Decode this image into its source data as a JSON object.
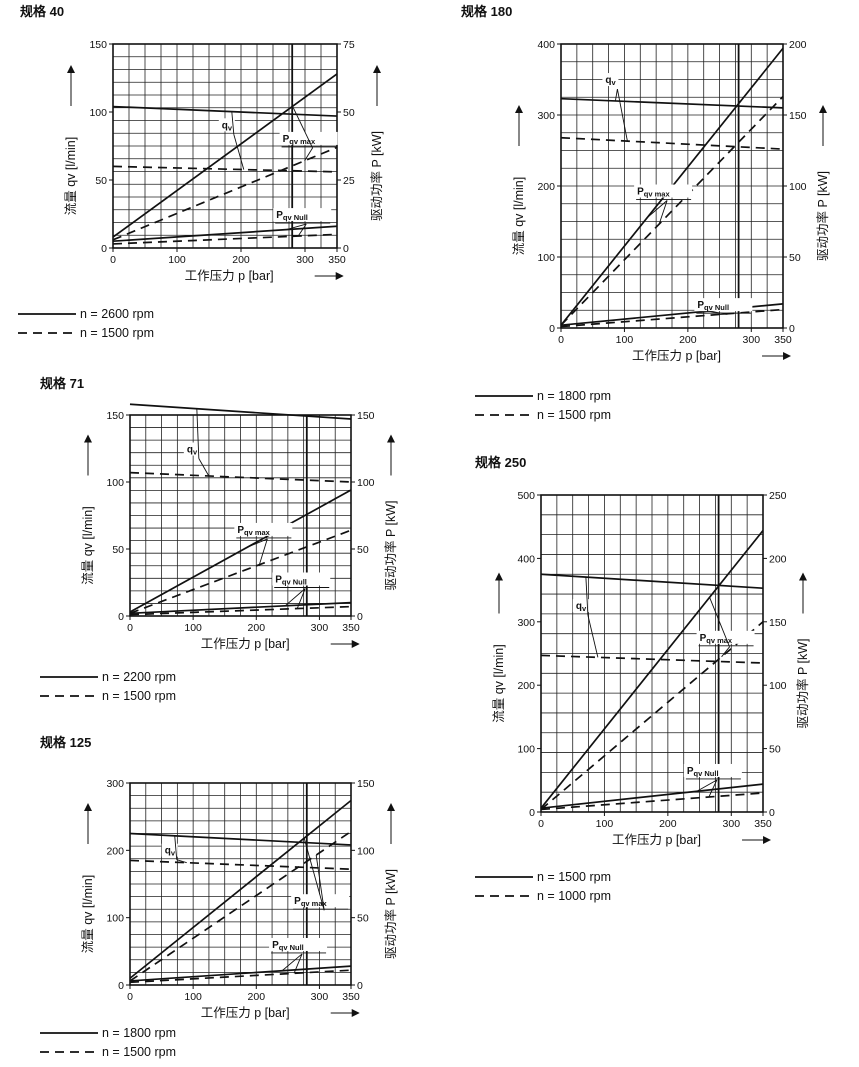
{
  "chart_data": [
    {
      "id": "c40",
      "type": "line",
      "title": "规格 40",
      "xlabel": "工作压力 p [bar]",
      "ylabel_left": "流量 qv [l/min]",
      "ylabel_right": "驱动功率 P [kW]",
      "xlim": [
        0,
        350
      ],
      "ylim_left": [
        0,
        150
      ],
      "ylim_right": [
        0,
        75
      ],
      "x_ticks": [
        0,
        100,
        200,
        300,
        350
      ],
      "y_ticks_left": [
        0,
        50,
        100,
        150
      ],
      "y_ticks_right": [
        0,
        25,
        50,
        75
      ],
      "x_marker": 280,
      "series": [
        {
          "name": "qv",
          "axis": "left",
          "speed": "n = 2600 rpm",
          "style": "solid",
          "x": [
            0,
            350
          ],
          "y": [
            104,
            97
          ]
        },
        {
          "name": "qv",
          "axis": "left",
          "speed": "n = 1500 rpm",
          "style": "dashed",
          "x": [
            0,
            350
          ],
          "y": [
            60,
            56
          ]
        },
        {
          "name": "Pqv max",
          "axis": "right",
          "speed": "n = 2600 rpm",
          "style": "solid",
          "x": [
            0,
            350
          ],
          "y": [
            4,
            64
          ]
        },
        {
          "name": "Pqv max",
          "axis": "right",
          "speed": "n = 1500 rpm",
          "style": "dashed",
          "x": [
            0,
            350
          ],
          "y": [
            3,
            37
          ]
        },
        {
          "name": "Pqv Null",
          "axis": "right",
          "speed": "n = 2600 rpm",
          "style": "solid",
          "x": [
            0,
            350
          ],
          "y": [
            2.5,
            8
          ]
        },
        {
          "name": "Pqv Null",
          "axis": "right",
          "speed": "n = 1500 rpm",
          "style": "dashed",
          "x": [
            0,
            350
          ],
          "y": [
            1.5,
            5
          ]
        }
      ],
      "legend": [
        "n = 2600 rpm",
        "n = 1500 rpm"
      ]
    },
    {
      "id": "c180",
      "type": "line",
      "title": "规格 180",
      "xlabel": "工作压力 p [bar]",
      "ylabel_left": "流量 qv [l/min]",
      "ylabel_right": "驱动功率 P [kW]",
      "xlim": [
        0,
        350
      ],
      "ylim_left": [
        0,
        400
      ],
      "ylim_right": [
        0,
        200
      ],
      "x_ticks": [
        0,
        100,
        200,
        300,
        350
      ],
      "y_ticks_left": [
        0,
        100,
        200,
        300,
        400
      ],
      "y_ticks_right": [
        0,
        50,
        100,
        150,
        200
      ],
      "x_marker": 280,
      "series": [
        {
          "name": "qv",
          "axis": "left",
          "speed": "n = 1800 rpm",
          "style": "solid",
          "x": [
            0,
            350
          ],
          "y": [
            323,
            310
          ]
        },
        {
          "name": "qv",
          "axis": "left",
          "speed": "n = 1500 rpm",
          "style": "dashed",
          "x": [
            0,
            350
          ],
          "y": [
            268,
            252
          ]
        },
        {
          "name": "Pqv max",
          "axis": "right",
          "speed": "n = 1800 rpm",
          "style": "solid",
          "x": [
            0,
            350
          ],
          "y": [
            2,
            197
          ]
        },
        {
          "name": "Pqv max",
          "axis": "right",
          "speed": "n = 1500 rpm",
          "style": "dashed",
          "x": [
            0,
            350
          ],
          "y": [
            2,
            163
          ]
        },
        {
          "name": "Pqv Null",
          "axis": "right",
          "speed": "n = 1800 rpm",
          "style": "solid",
          "x": [
            0,
            350
          ],
          "y": [
            2,
            17
          ]
        },
        {
          "name": "Pqv Null",
          "axis": "right",
          "speed": "n = 1500 rpm",
          "style": "dashed",
          "x": [
            0,
            350
          ],
          "y": [
            1,
            13
          ]
        }
      ],
      "legend": [
        "n = 1800 rpm",
        "n = 1500 rpm"
      ]
    },
    {
      "id": "c71",
      "type": "line",
      "title": "规格 71",
      "xlabel": "工作压力 p [bar]",
      "ylabel_left": "流量 qv [l/min]",
      "ylabel_right": "驱动功率 P [kW]",
      "xlim": [
        0,
        350
      ],
      "ylim_left": [
        0,
        150
      ],
      "ylim_right": [
        0,
        150
      ],
      "x_ticks": [
        0,
        100,
        200,
        300,
        350
      ],
      "y_ticks_left": [
        0,
        50,
        100,
        150
      ],
      "y_ticks_right": [
        0,
        50,
        100,
        150
      ],
      "x_marker": 280,
      "series": [
        {
          "name": "qv",
          "axis": "left",
          "speed": "n = 2200 rpm",
          "style": "solid",
          "x": [
            0,
            350
          ],
          "y": [
            158,
            147
          ]
        },
        {
          "name": "qv",
          "axis": "left",
          "speed": "n = 1500 rpm",
          "style": "dashed",
          "x": [
            0,
            350
          ],
          "y": [
            107,
            100
          ]
        },
        {
          "name": "Pqv max",
          "axis": "right",
          "speed": "n = 2200 rpm",
          "style": "solid",
          "x": [
            0,
            350
          ],
          "y": [
            3,
            94
          ]
        },
        {
          "name": "Pqv max",
          "axis": "right",
          "speed": "n = 1500 rpm",
          "style": "dashed",
          "x": [
            0,
            350
          ],
          "y": [
            2,
            64
          ]
        },
        {
          "name": "Pqv Null",
          "axis": "right",
          "speed": "n = 2200 rpm",
          "style": "solid",
          "x": [
            0,
            350
          ],
          "y": [
            2,
            10
          ]
        },
        {
          "name": "Pqv Null",
          "axis": "right",
          "speed": "n = 1500 rpm",
          "style": "dashed",
          "x": [
            0,
            350
          ],
          "y": [
            1,
            7
          ]
        }
      ],
      "legend": [
        "n = 2200 rpm",
        "n = 1500 rpm"
      ]
    },
    {
      "id": "c125",
      "type": "line",
      "title": "规格 125",
      "xlabel": "工作压力 p [bar]",
      "ylabel_left": "流量 qv [l/min]",
      "ylabel_right": "驱动功率 P [kW]",
      "xlim": [
        0,
        350
      ],
      "ylim_left": [
        0,
        300
      ],
      "ylim_right": [
        0,
        150
      ],
      "x_ticks": [
        0,
        100,
        200,
        300,
        350
      ],
      "y_ticks_left": [
        0,
        100,
        200,
        300
      ],
      "y_ticks_right": [
        0,
        50,
        100,
        150
      ],
      "x_marker": 280,
      "series": [
        {
          "name": "qv",
          "axis": "left",
          "speed": "n = 1800 rpm",
          "style": "solid",
          "x": [
            0,
            350
          ],
          "y": [
            225,
            208
          ]
        },
        {
          "name": "qv",
          "axis": "left",
          "speed": "n = 1500 rpm",
          "style": "dashed",
          "x": [
            0,
            350
          ],
          "y": [
            185,
            172
          ]
        },
        {
          "name": "Pqv max",
          "axis": "right",
          "speed": "n = 1800 rpm",
          "style": "solid",
          "x": [
            0,
            350
          ],
          "y": [
            5,
            137
          ]
        },
        {
          "name": "Pqv max",
          "axis": "right",
          "speed": "n = 1500 rpm",
          "style": "dashed",
          "x": [
            0,
            350
          ],
          "y": [
            3,
            114
          ]
        },
        {
          "name": "Pqv Null",
          "axis": "right",
          "speed": "n = 1800 rpm",
          "style": "solid",
          "x": [
            0,
            350
          ],
          "y": [
            3,
            14
          ]
        },
        {
          "name": "Pqv Null",
          "axis": "right",
          "speed": "n = 1500 rpm",
          "style": "dashed",
          "x": [
            0,
            350
          ],
          "y": [
            2,
            11
          ]
        }
      ],
      "legend": [
        "n = 1800 rpm",
        "n = 1500 rpm"
      ]
    },
    {
      "id": "c250",
      "type": "line",
      "title": "规格 250",
      "xlabel": "工作压力 p [bar]",
      "ylabel_left": "流量 qv [l/min]",
      "ylabel_right": "驱动功率 P [kW]",
      "xlim": [
        0,
        350
      ],
      "ylim_left": [
        0,
        500
      ],
      "ylim_right": [
        0,
        250
      ],
      "x_ticks": [
        0,
        100,
        200,
        300,
        350
      ],
      "y_ticks_left": [
        0,
        100,
        200,
        300,
        400,
        500
      ],
      "y_ticks_right": [
        0,
        50,
        100,
        150,
        200,
        250
      ],
      "x_marker": 280,
      "series": [
        {
          "name": "qv",
          "axis": "left",
          "speed": "n = 1500 rpm",
          "style": "solid",
          "x": [
            0,
            350
          ],
          "y": [
            375,
            353
          ]
        },
        {
          "name": "qv",
          "axis": "left",
          "speed": "n = 1000 rpm",
          "style": "dashed",
          "x": [
            0,
            350
          ],
          "y": [
            247,
            235
          ]
        },
        {
          "name": "Pqv max",
          "axis": "right",
          "speed": "n = 1500 rpm",
          "style": "solid",
          "x": [
            0,
            350
          ],
          "y": [
            3,
            222
          ]
        },
        {
          "name": "Pqv max",
          "axis": "right",
          "speed": "n = 1000 rpm",
          "style": "dashed",
          "x": [
            0,
            350
          ],
          "y": [
            2,
            150
          ]
        },
        {
          "name": "Pqv Null",
          "axis": "right",
          "speed": "n = 1500 rpm",
          "style": "solid",
          "x": [
            0,
            350
          ],
          "y": [
            3,
            22
          ]
        },
        {
          "name": "Pqv Null",
          "axis": "right",
          "speed": "n = 1000 rpm",
          "style": "dashed",
          "x": [
            0,
            350
          ],
          "y": [
            2,
            15
          ]
        }
      ],
      "legend": [
        "n = 1500 rpm",
        "n = 1000 rpm"
      ]
    }
  ]
}
